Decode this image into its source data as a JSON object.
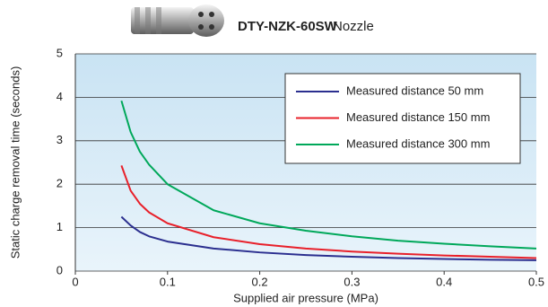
{
  "chart_data": {
    "type": "line",
    "title": "DTY-NZK-60SW",
    "subtitle": "Nozzle",
    "x_label": "Supplied air pressure (MPa)",
    "y_label": "Static charge removal time (seconds)",
    "x": [
      0.05,
      0.06,
      0.07,
      0.08,
      0.1,
      0.15,
      0.2,
      0.25,
      0.3,
      0.35,
      0.4,
      0.45,
      0.5
    ],
    "series": [
      {
        "name": "Measured distance 50 mm",
        "color": "#2b2f8f",
        "values": [
          1.25,
          1.05,
          0.9,
          0.8,
          0.68,
          0.52,
          0.43,
          0.37,
          0.33,
          0.3,
          0.28,
          0.26,
          0.25
        ]
      },
      {
        "name": "Measured distance 150 mm",
        "color": "#e8202a",
        "values": [
          2.43,
          1.85,
          1.55,
          1.35,
          1.1,
          0.78,
          0.62,
          0.52,
          0.45,
          0.4,
          0.36,
          0.33,
          0.3
        ]
      },
      {
        "name": "Measured distance 300 mm",
        "color": "#00a85a",
        "values": [
          3.92,
          3.2,
          2.75,
          2.45,
          2.0,
          1.4,
          1.1,
          0.93,
          0.8,
          0.7,
          0.63,
          0.57,
          0.52
        ]
      }
    ],
    "xlim": [
      0,
      0.5
    ],
    "xticks": [
      0,
      0.1,
      0.2,
      0.3,
      0.4,
      0.5
    ],
    "ylim": [
      0,
      5
    ],
    "yticks": [
      0,
      1,
      2,
      3,
      4,
      5
    ],
    "grid": true,
    "legend": "upper right"
  }
}
